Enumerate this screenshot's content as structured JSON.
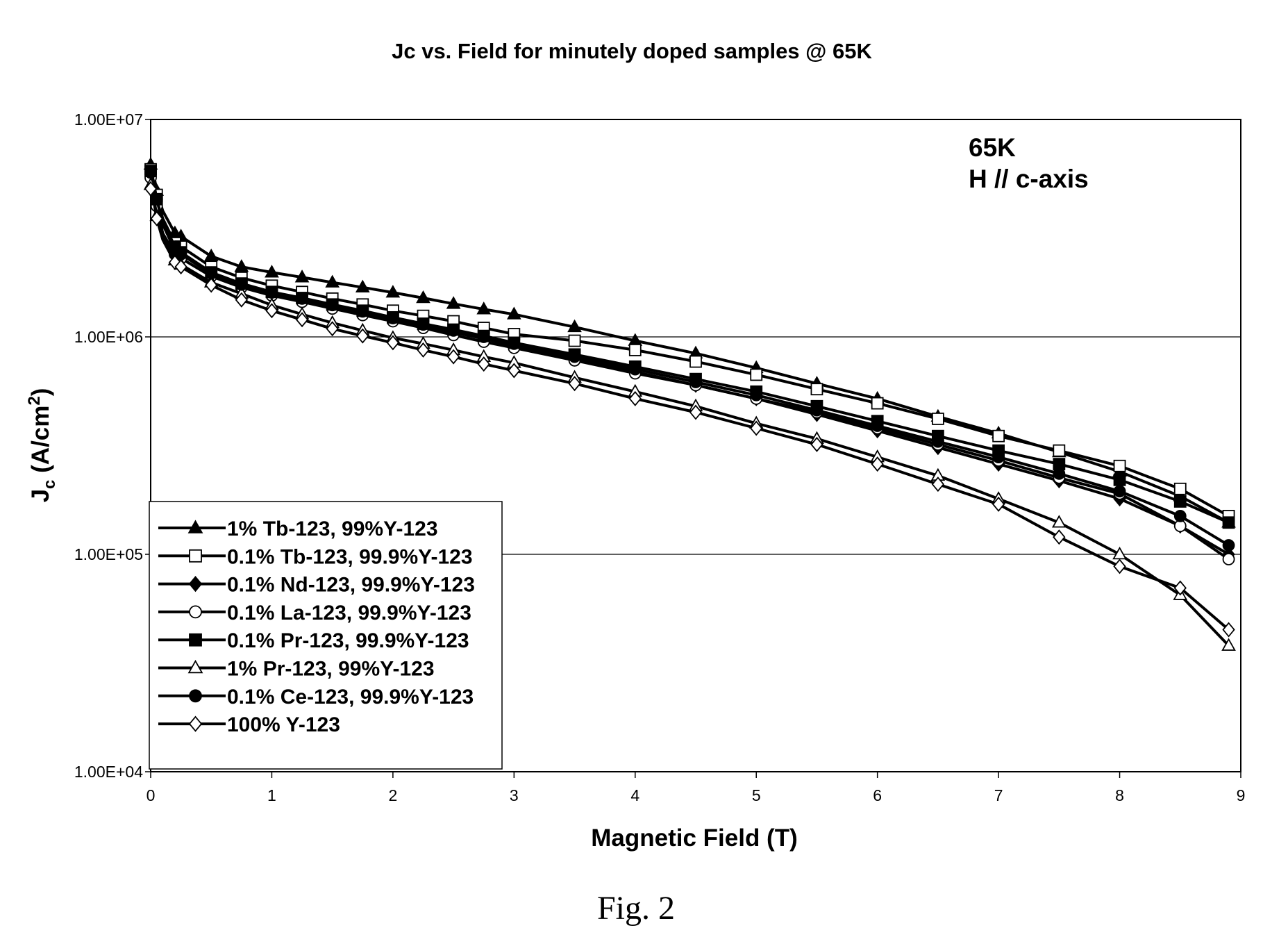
{
  "figure": {
    "caption": "Fig. 2"
  },
  "chart_data": {
    "type": "line",
    "title": "Jc vs. Field for minutely doped samples @ 65K",
    "xlabel": "Magnetic Field (T)",
    "ylabel_main": "J",
    "ylabel_sub": "c",
    "ylabel_rest": " (A/cm",
    "ylabel_sup": "2",
    "ylabel_end": ")",
    "yscale": "log",
    "xlim": [
      0,
      9
    ],
    "ylim": [
      10000,
      10000000
    ],
    "xticks": [
      0,
      1,
      2,
      3,
      4,
      5,
      6,
      7,
      8,
      9
    ],
    "xtick_labels": [
      "0",
      "1",
      "2",
      "3",
      "4",
      "5",
      "6",
      "7",
      "8",
      "9"
    ],
    "yticks": [
      10000,
      100000,
      1000000,
      10000000
    ],
    "ytick_labels": [
      "1.00E+04",
      "1.00E+05",
      "1.00E+06",
      "1.00E+07"
    ],
    "grid": "horizontal major lines",
    "annotation_lines": [
      "65K",
      "H // c-axis"
    ],
    "legend_position": "bottom-left",
    "x": [
      0,
      0.02,
      0.05,
      0.1,
      0.2,
      0.25,
      0.5,
      0.75,
      1,
      1.25,
      1.5,
      1.75,
      2,
      2.25,
      2.5,
      2.75,
      3,
      3.5,
      4,
      4.5,
      5,
      5.5,
      6,
      6.5,
      7,
      7.5,
      8,
      8.5,
      8.9
    ],
    "series": [
      {
        "name": "1% Tb-123, 99%Y-123",
        "marker": "triangle",
        "filled": true,
        "values": [
          6200000,
          5800000,
          4700000,
          3800000,
          3000000,
          2900000,
          2350000,
          2100000,
          1980000,
          1880000,
          1780000,
          1690000,
          1600000,
          1510000,
          1420000,
          1340000,
          1270000,
          1110000,
          960000,
          840000,
          720000,
          610000,
          520000,
          430000,
          360000,
          295000,
          240000,
          185000,
          140000
        ]
      },
      {
        "name": "0.1% Tb-123, 99.9%Y-123",
        "marker": "square",
        "filled": false,
        "values": [
          5900000,
          5500000,
          4500000,
          3500000,
          2700000,
          2600000,
          2100000,
          1870000,
          1720000,
          1610000,
          1500000,
          1410000,
          1320000,
          1250000,
          1180000,
          1100000,
          1030000,
          960000,
          870000,
          770000,
          670000,
          575000,
          495000,
          420000,
          350000,
          300000,
          255000,
          200000,
          150000
        ]
      },
      {
        "name": "0.1% Nd-123, 99.9%Y-123",
        "marker": "diamond",
        "filled": true,
        "values": [
          5600000,
          5200000,
          4200000,
          3300000,
          2500000,
          2400000,
          1950000,
          1720000,
          1580000,
          1480000,
          1380000,
          1290000,
          1200000,
          1120000,
          1050000,
          980000,
          910000,
          790000,
          690000,
          600000,
          520000,
          440000,
          370000,
          310000,
          260000,
          218000,
          180000,
          135000,
          100000
        ]
      },
      {
        "name": "0.1% La-123, 99.9%Y-123",
        "marker": "circle",
        "filled": false,
        "values": [
          5400000,
          5000000,
          4000000,
          3000000,
          2400000,
          2300000,
          1900000,
          1690000,
          1550000,
          1450000,
          1350000,
          1260000,
          1180000,
          1100000,
          1020000,
          950000,
          890000,
          780000,
          680000,
          600000,
          520000,
          450000,
          380000,
          320000,
          270000,
          225000,
          190000,
          135000,
          95000
        ]
      },
      {
        "name": "0.1% Pr-123, 99.9%Y-123",
        "marker": "square",
        "filled": true,
        "values": [
          5800000,
          5300000,
          4300000,
          3400000,
          2600000,
          2450000,
          1980000,
          1760000,
          1610000,
          1510000,
          1410000,
          1320000,
          1230000,
          1150000,
          1080000,
          1010000,
          940000,
          830000,
          730000,
          640000,
          560000,
          480000,
          410000,
          350000,
          300000,
          260000,
          220000,
          175000,
          140000
        ]
      },
      {
        "name": "1% Pr-123, 99%Y-123",
        "marker": "triangle",
        "filled": false,
        "values": [
          5000000,
          4600000,
          3600000,
          2900000,
          2250000,
          2150000,
          1780000,
          1580000,
          1400000,
          1270000,
          1160000,
          1070000,
          990000,
          930000,
          870000,
          810000,
          760000,
          650000,
          560000,
          480000,
          400000,
          340000,
          280000,
          230000,
          180000,
          140000,
          100000,
          65000,
          38000
        ]
      },
      {
        "name": "0.1% Ce-123, 99.9%Y-123",
        "marker": "circle",
        "filled": true,
        "values": [
          5700000,
          5300000,
          4300000,
          3300000,
          2500000,
          2400000,
          1960000,
          1740000,
          1600000,
          1500000,
          1400000,
          1310000,
          1220000,
          1140000,
          1070000,
          1000000,
          930000,
          810000,
          710000,
          620000,
          540000,
          460000,
          390000,
          330000,
          280000,
          235000,
          195000,
          150000,
          110000
        ]
      },
      {
        "name": "100% Y-123",
        "marker": "diamond",
        "filled": false,
        "values": [
          4800000,
          4400000,
          3500000,
          2800000,
          2200000,
          2100000,
          1730000,
          1480000,
          1320000,
          1200000,
          1090000,
          1010000,
          940000,
          870000,
          810000,
          750000,
          700000,
          610000,
          520000,
          450000,
          380000,
          320000,
          260000,
          210000,
          170000,
          120000,
          88000,
          70000,
          45000
        ]
      }
    ]
  }
}
